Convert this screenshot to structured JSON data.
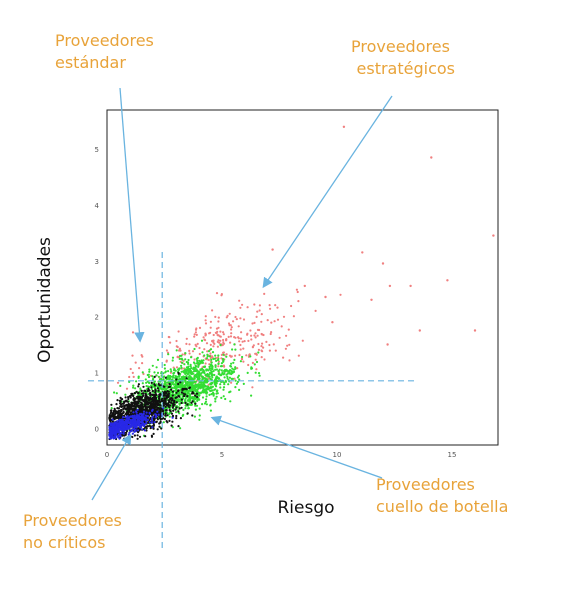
{
  "chart_data": {
    "type": "scatter",
    "xlabel": "Riesgo",
    "ylabel": "Oportunidades",
    "xlim": [
      0,
      17
    ],
    "ylim": [
      -0.3,
      5.7
    ],
    "x_ticks": [
      0,
      5,
      10,
      15
    ],
    "y_ticks": [
      0,
      1,
      2,
      3,
      4,
      5
    ],
    "thresholds": {
      "x": 2.4,
      "y": 0.85
    },
    "grid": false,
    "legend": "none",
    "series": [
      {
        "color": "#f08080",
        "clusters": [
          {
            "cx": 5.0,
            "cy": 1.5,
            "sx": 1.6,
            "sy": 0.35,
            "n": 320
          }
        ],
        "points": [
          [
            10.3,
            5.4
          ],
          [
            16.8,
            3.45
          ],
          [
            14.1,
            4.85
          ],
          [
            7.2,
            3.2
          ],
          [
            11.1,
            3.15
          ],
          [
            12.0,
            2.95
          ],
          [
            8.6,
            2.55
          ],
          [
            12.3,
            2.55
          ],
          [
            13.2,
            2.55
          ],
          [
            11.5,
            2.3
          ],
          [
            9.5,
            2.35
          ],
          [
            14.8,
            2.65
          ],
          [
            16.0,
            1.75
          ],
          [
            13.6,
            1.75
          ],
          [
            12.2,
            1.5
          ],
          [
            9.8,
            1.9
          ]
        ]
      },
      {
        "color": "#33dd33",
        "clusters": [
          {
            "cx": 3.4,
            "cy": 0.75,
            "sx": 1.1,
            "sy": 0.22,
            "n": 1300
          }
        ],
        "points": []
      },
      {
        "color": "#111111",
        "clusters": [
          {
            "cx": 1.5,
            "cy": 0.3,
            "sx": 0.85,
            "sy": 0.18,
            "n": 1200
          }
        ],
        "points": []
      },
      {
        "color": "#2828e6",
        "clusters": [
          {
            "cx": 0.8,
            "cy": 0.05,
            "sx": 0.55,
            "sy": 0.08,
            "n": 500
          }
        ],
        "points": []
      }
    ]
  },
  "annotations": {
    "estandar": [
      "Proveedores",
      "estándar"
    ],
    "estrategicos": [
      "Proveedores",
      "estratégicos"
    ],
    "no_criticos": [
      "Proveedores",
      "no críticos"
    ],
    "cuello": [
      "Proveedores",
      "cuello de botella"
    ]
  },
  "colors": {
    "annotation_text": "#e8a33a",
    "arrow": "#6ab4e0",
    "threshold_line": "#6ab4e0"
  }
}
